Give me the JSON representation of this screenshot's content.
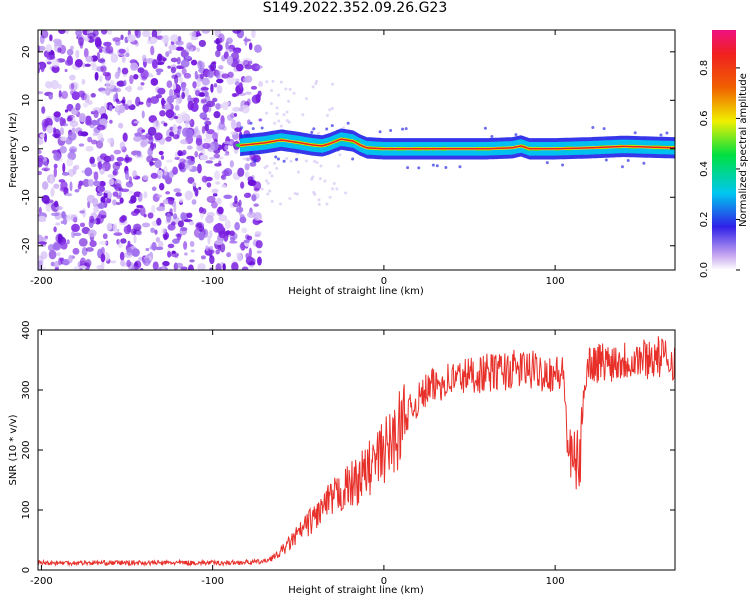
{
  "title": "S149.2022.352.09.26.G23",
  "chart_data": [
    {
      "type": "heatmap",
      "xlabel": "Height of straight line (km)",
      "ylabel": "Frequency (Hz)",
      "xlim": [
        -202,
        170
      ],
      "ylim": [
        -25,
        24.5
      ],
      "xticks": [
        -200,
        -100,
        0,
        100
      ],
      "yticks": [
        -20,
        -10,
        0,
        10,
        20
      ],
      "tone": {
        "x": [
          -84,
          -70,
          -60,
          -50,
          -42,
          -36,
          -32,
          -25,
          -18,
          -14,
          -10,
          0,
          10,
          20,
          40,
          60,
          75,
          80,
          85,
          100,
          120,
          140,
          160,
          170
        ],
        "freq": [
          0.7,
          1.2,
          1.8,
          1.3,
          0.8,
          0.6,
          1.0,
          2.0,
          1.6,
          0.8,
          0.2,
          0.0,
          0.0,
          0.0,
          0.0,
          0.0,
          0.2,
          0.6,
          0.0,
          0.0,
          0.2,
          0.5,
          0.3,
          0.2
        ]
      },
      "noise_region_x": [
        -202,
        -72
      ],
      "colorbar": {
        "label": "Normalized spectral amplitude",
        "range": [
          0.0,
          0.95
        ],
        "ticks": [
          0.0,
          0.2,
          0.4,
          0.6,
          0.8
        ]
      }
    },
    {
      "type": "line",
      "xlabel": "Height of straight line (km)",
      "ylabel": "SNR (10 * v/v)",
      "xlim": [
        -202,
        170
      ],
      "ylim": [
        0,
        400
      ],
      "xticks": [
        -200,
        -100,
        0,
        100
      ],
      "yticks": [
        0,
        100,
        200,
        300,
        400
      ],
      "color": "#e8302a",
      "series": [
        {
          "x": [
            -202,
            -180,
            -150,
            -120,
            -90,
            -70,
            -62,
            -55,
            -45,
            -35,
            -25,
            -15,
            -5,
            5,
            15,
            25,
            35,
            50,
            65,
            80,
            95,
            105,
            108,
            110,
            115,
            117,
            120,
            140,
            160,
            170
          ],
          "values": [
            12,
            12,
            12,
            12,
            12,
            14,
            25,
            45,
            75,
            105,
            130,
            150,
            180,
            215,
            265,
            300,
            315,
            325,
            330,
            335,
            330,
            325,
            190,
            180,
            185,
            320,
            345,
            350,
            355,
            350
          ]
        }
      ]
    }
  ]
}
